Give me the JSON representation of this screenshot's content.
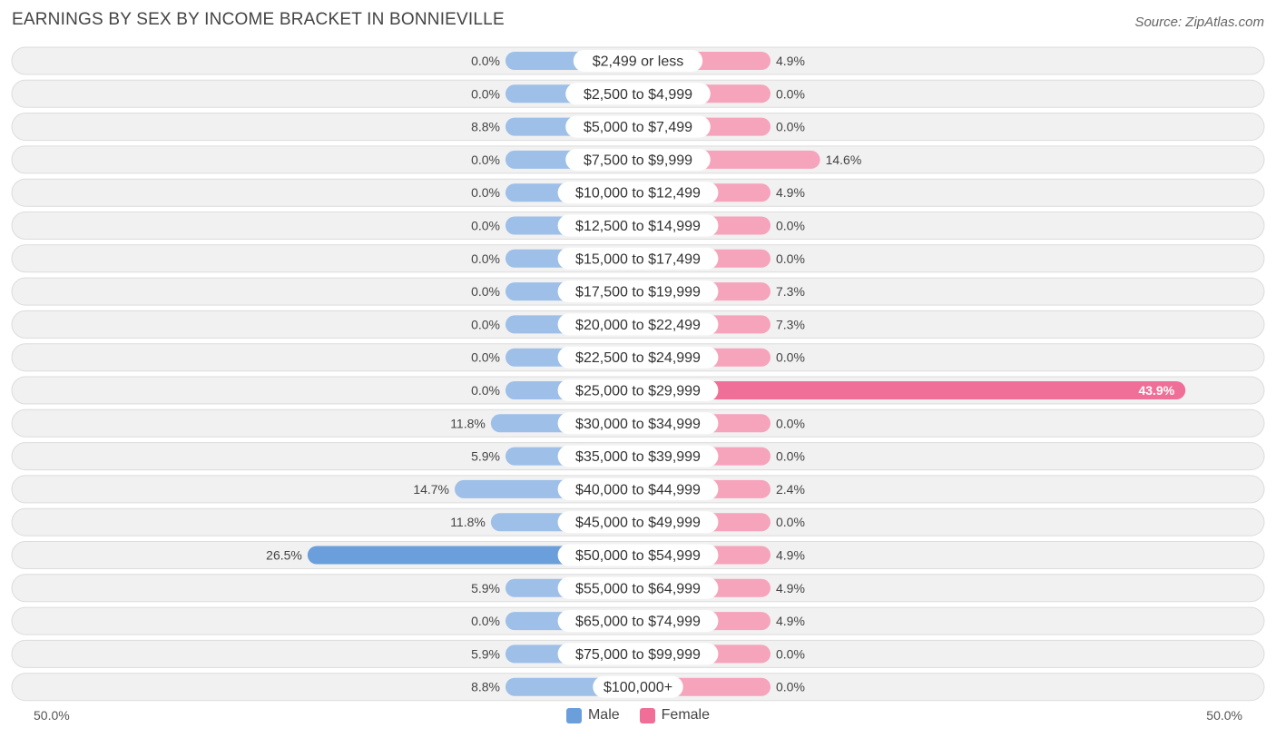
{
  "title": "EARNINGS BY SEX BY INCOME BRACKET IN BONNIEVILLE",
  "source": "Source: ZipAtlas.com",
  "axis": {
    "left_label": "50.0%",
    "right_label": "50.0%"
  },
  "legend": {
    "male_label": "Male",
    "female_label": "Female"
  },
  "colors": {
    "male": "#9dbfe8",
    "male_strong": "#6a9fdc",
    "female": "#f6a3bc",
    "female_strong": "#ef6f98",
    "row_bg": "#f1f1f1",
    "row_border": "#dcdcdc"
  },
  "chart_data": {
    "type": "bar",
    "orientation": "horizontal-diverging",
    "title": "EARNINGS BY SEX BY INCOME BRACKET IN BONNIEVILLE",
    "xlim": [
      -50,
      50
    ],
    "categories": [
      "$2,499 or less",
      "$2,500 to $4,999",
      "$5,000 to $7,499",
      "$7,500 to $9,999",
      "$10,000 to $12,499",
      "$12,500 to $14,999",
      "$15,000 to $17,499",
      "$17,500 to $19,999",
      "$20,000 to $22,499",
      "$22,500 to $24,999",
      "$25,000 to $29,999",
      "$30,000 to $34,999",
      "$35,000 to $39,999",
      "$40,000 to $44,999",
      "$45,000 to $49,999",
      "$50,000 to $54,999",
      "$55,000 to $64,999",
      "$65,000 to $74,999",
      "$75,000 to $99,999",
      "$100,000+"
    ],
    "series": [
      {
        "name": "Male",
        "values": [
          0.0,
          0.0,
          8.8,
          0.0,
          0.0,
          0.0,
          0.0,
          0.0,
          0.0,
          0.0,
          0.0,
          11.8,
          5.9,
          14.7,
          11.8,
          26.5,
          5.9,
          0.0,
          5.9,
          8.8
        ],
        "labels": [
          "0.0%",
          "0.0%",
          "8.8%",
          "0.0%",
          "0.0%",
          "0.0%",
          "0.0%",
          "0.0%",
          "0.0%",
          "0.0%",
          "0.0%",
          "11.8%",
          "5.9%",
          "14.7%",
          "11.8%",
          "26.5%",
          "5.9%",
          "0.0%",
          "5.9%",
          "8.8%"
        ]
      },
      {
        "name": "Female",
        "values": [
          4.9,
          0.0,
          0.0,
          14.6,
          4.9,
          0.0,
          0.0,
          7.3,
          7.3,
          0.0,
          43.9,
          0.0,
          0.0,
          2.4,
          0.0,
          4.9,
          4.9,
          4.9,
          0.0,
          0.0
        ],
        "labels": [
          "4.9%",
          "0.0%",
          "0.0%",
          "14.6%",
          "4.9%",
          "0.0%",
          "0.0%",
          "7.3%",
          "7.3%",
          "0.0%",
          "43.9%",
          "0.0%",
          "0.0%",
          "2.4%",
          "0.0%",
          "4.9%",
          "4.9%",
          "4.9%",
          "0.0%",
          "0.0%"
        ]
      }
    ]
  }
}
